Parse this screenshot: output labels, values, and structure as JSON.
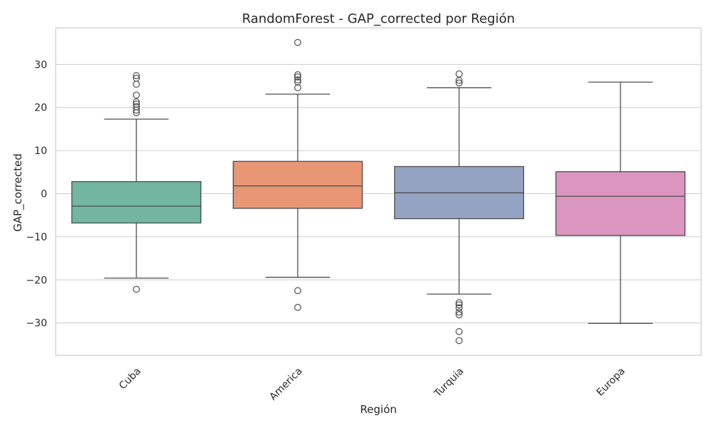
{
  "chart_data": {
    "type": "box",
    "title": "RandomForest - GAP_corrected por Región",
    "xlabel": "Región",
    "ylabel": "GAP_corrected",
    "ylim": [
      -37.5,
      38.5
    ],
    "yticks": [
      -30,
      -20,
      -10,
      0,
      10,
      20,
      30
    ],
    "ytick_labels": [
      "−30",
      "−20",
      "−10",
      "0",
      "10",
      "20",
      "30"
    ],
    "grid": true,
    "categories": [
      "Cuba",
      "America",
      "Turquia",
      "Europa"
    ],
    "boxes": [
      {
        "name": "Cuba",
        "color": "#72b6a1",
        "whisker_low": -19.6,
        "q1": -6.8,
        "median": -2.9,
        "q3": 2.8,
        "whisker_high": 17.3,
        "outliers": [
          -22.2,
          18.8,
          19.4,
          20.2,
          20.8,
          21.3,
          22.9,
          25.4,
          26.8,
          27.4
        ]
      },
      {
        "name": "America",
        "color": "#e99675",
        "whisker_low": -19.4,
        "q1": -3.4,
        "median": 1.8,
        "q3": 7.5,
        "whisker_high": 23.1,
        "outliers": [
          -26.4,
          -22.5,
          24.6,
          25.9,
          26.4,
          27.1,
          27.6,
          35.1
        ]
      },
      {
        "name": "Turquia",
        "color": "#95a3c3",
        "whisker_low": -23.3,
        "q1": -5.8,
        "median": 0.2,
        "q3": 6.3,
        "whisker_high": 24.6,
        "outliers": [
          -34.1,
          -32.0,
          -28.1,
          -27.5,
          -26.5,
          -25.8,
          -25.3,
          25.7,
          26.3,
          27.8
        ]
      },
      {
        "name": "Europa",
        "color": "#db96c0",
        "whisker_low": -30.1,
        "q1": -9.7,
        "median": -0.6,
        "q3": 5.1,
        "whisker_high": 25.9,
        "outliers": []
      }
    ]
  }
}
